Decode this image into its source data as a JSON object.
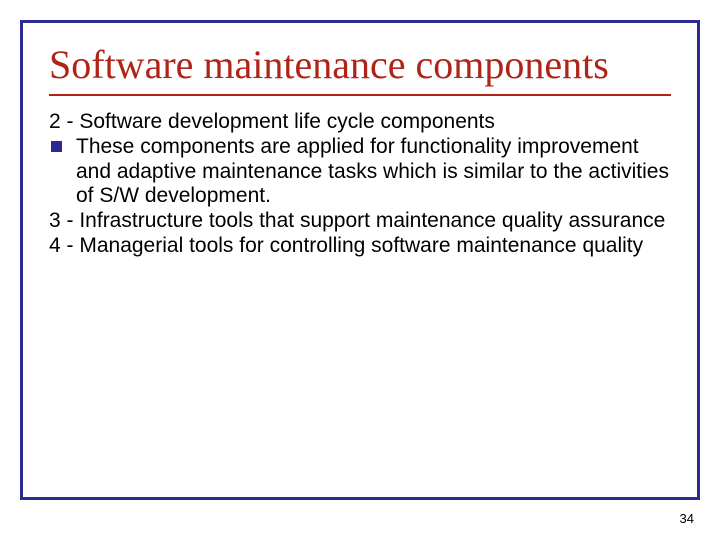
{
  "colors": {
    "frame_border": "#2a2a90",
    "title_color": "#b02418",
    "rule_color": "#b02418",
    "bullet_color": "#2a2a90",
    "body_text": "#000000",
    "background": "#ffffff"
  },
  "title": "Software maintenance components",
  "body": {
    "line1": "2 - Software development life cycle components",
    "bullet1": "These components are applied for functionality improvement and adaptive maintenance tasks which is similar to the activities of S/W development.",
    "line2": "3 - Infrastructure tools that support maintenance quality assurance",
    "line3": "4 - Managerial tools for controlling software maintenance quality"
  },
  "page_number": "34",
  "typography": {
    "title_fontsize": 40,
    "body_fontsize": 21,
    "page_number_fontsize": 13
  }
}
